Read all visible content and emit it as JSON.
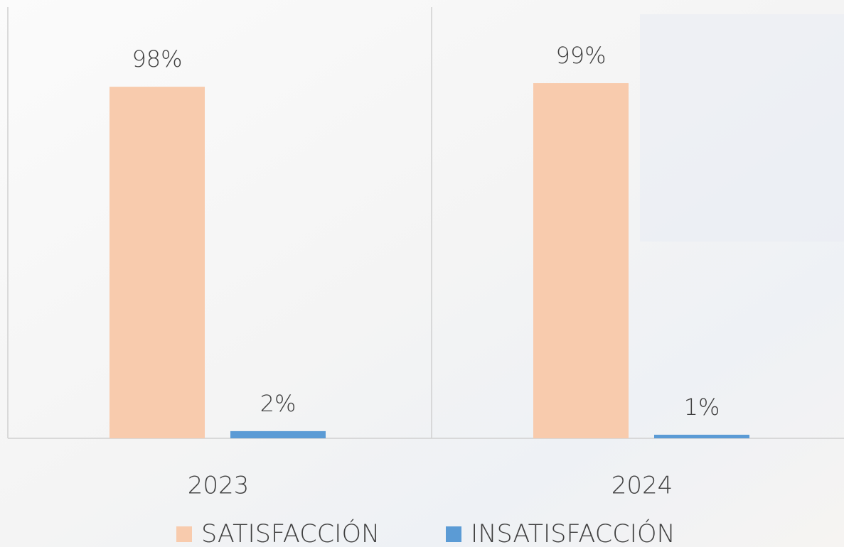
{
  "chart_data": {
    "type": "bar",
    "categories": [
      "2023",
      "2024"
    ],
    "series": [
      {
        "name": "SATISFACCIÓN",
        "color": "#f8cbad",
        "values": [
          98,
          99
        ],
        "value_labels": [
          "98%",
          "99%"
        ]
      },
      {
        "name": "INSATISFACCIÓN",
        "color": "#5b9bd5",
        "values": [
          2,
          1
        ],
        "value_labels": [
          "2%",
          "1%"
        ]
      }
    ],
    "legend": "bottom"
  }
}
